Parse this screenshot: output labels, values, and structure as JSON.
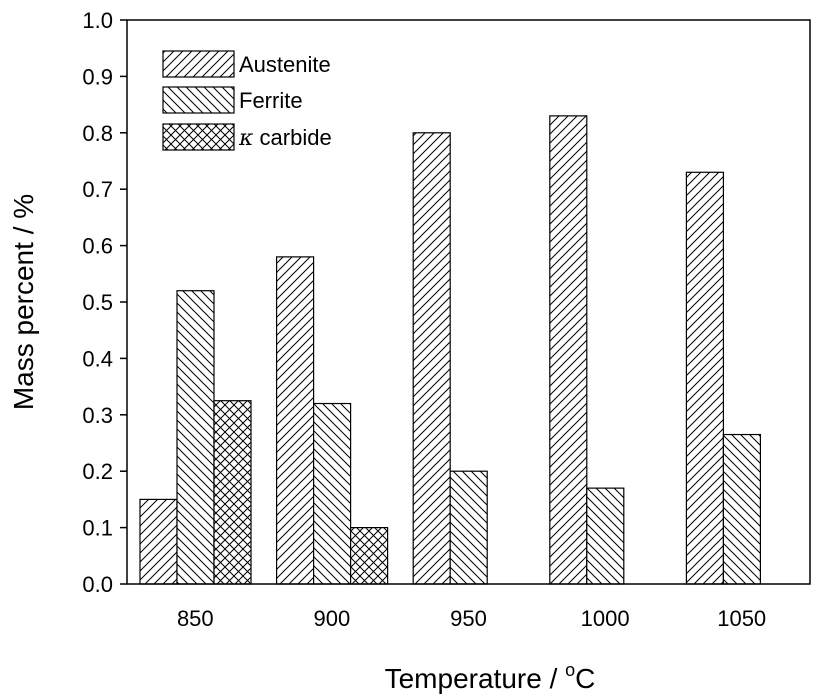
{
  "chart_data": {
    "type": "bar",
    "title": "",
    "xlabel": "Temperature / ",
    "xlabel_unit_sup": "o",
    "xlabel_unit": "C",
    "ylabel": "Mass percent / %",
    "ylim": [
      0.0,
      1.0
    ],
    "yticks": [
      "0.0",
      "0.1",
      "0.2",
      "0.3",
      "0.4",
      "0.5",
      "0.6",
      "0.7",
      "0.8",
      "0.9",
      "1.0"
    ],
    "categories": [
      "850",
      "900",
      "950",
      "1000",
      "1050"
    ],
    "series": [
      {
        "name": "Austenite",
        "pattern": "forward-hatch",
        "values": [
          0.15,
          0.58,
          0.8,
          0.83,
          0.73
        ]
      },
      {
        "name": "Ferrite",
        "pattern": "back-hatch",
        "values": [
          0.52,
          0.32,
          0.2,
          0.17,
          0.265
        ]
      },
      {
        "name_symbol": "κ",
        "name": " carbide",
        "pattern": "cross-hatch",
        "values": [
          0.325,
          0.1,
          null,
          null,
          null
        ]
      }
    ],
    "grid": false,
    "legend_position": "top-left"
  }
}
